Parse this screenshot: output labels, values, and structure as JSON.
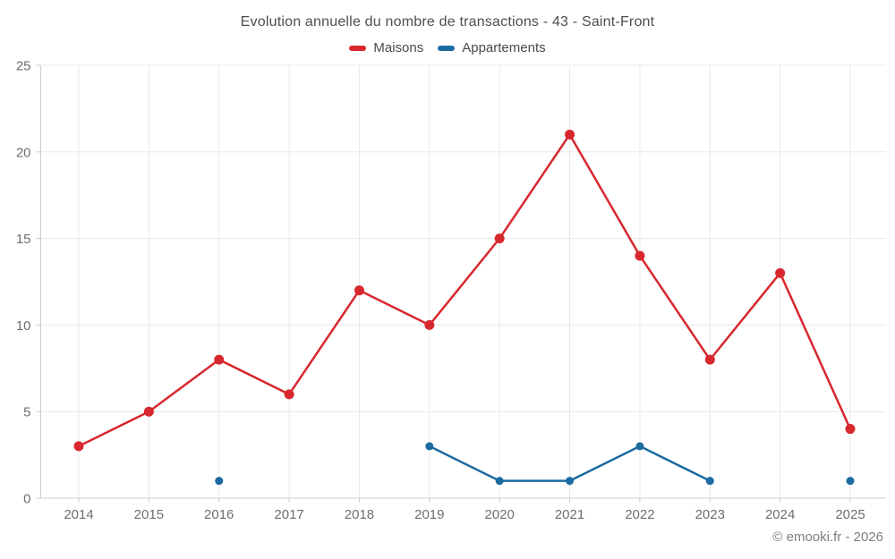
{
  "header": {
    "title": "Evolution annuelle du nombre de transactions - 43 - Saint-Front"
  },
  "footer": {
    "copyright": "© emooki.fr - 2026"
  },
  "chart_data": {
    "type": "line",
    "title": "Evolution annuelle du nombre de transactions - 43 - Saint-Front",
    "categories": [
      "2014",
      "2015",
      "2016",
      "2017",
      "2018",
      "2019",
      "2020",
      "2021",
      "2022",
      "2023",
      "2024",
      "2025"
    ],
    "series": [
      {
        "name": "Maisons",
        "color": "#d7282e",
        "marker_radius": 5.5,
        "values": [
          3,
          5,
          8,
          6,
          12,
          10,
          15,
          21,
          14,
          8,
          13,
          4
        ]
      },
      {
        "name": "Appartements",
        "color": "#1c6ba0",
        "marker_radius": 4.5,
        "values": [
          null,
          null,
          1,
          null,
          null,
          3,
          1,
          1,
          3,
          1,
          null,
          1
        ]
      }
    ],
    "xlabel": "",
    "ylabel": "",
    "ylim": [
      0,
      25
    ],
    "yticks": [
      0,
      5,
      10,
      15,
      20,
      25
    ],
    "grid": true,
    "legend_position": "top",
    "grid_color": "#e8e8e8",
    "axis_color": "#cccccc",
    "tick_label_color": "#6e6e6e"
  }
}
